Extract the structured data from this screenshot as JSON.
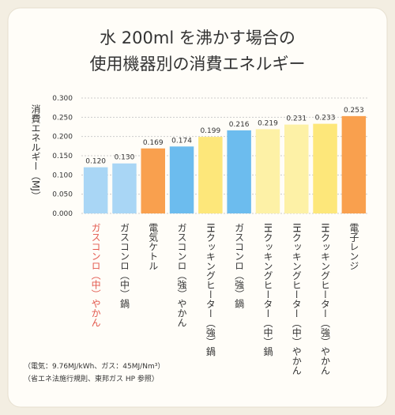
{
  "chart_data": {
    "type": "bar",
    "title": [
      "水 200ml を沸かす場合の",
      "使用機器別の消費エネルギー"
    ],
    "y_label": "消費エネルギー（MJ）",
    "categories": [
      "ガスコンロ（中）やかん",
      "ガスコンロ（中）鍋",
      "電気ケトル",
      "ガスコンロ（強）やかん",
      "IHクッキングヒーター（強）鍋",
      "ガスコンロ（強）鍋",
      "IHクッキングヒーター（中）鍋",
      "IHクッキングヒーター（中）やかん",
      "IHクッキングヒーター（強）やかん",
      "電子レンジ"
    ],
    "values": [
      0.12,
      0.13,
      0.169,
      0.174,
      0.199,
      0.216,
      0.219,
      0.231,
      0.233,
      0.253
    ],
    "value_labels": [
      "0.120",
      "0.130",
      "0.169",
      "0.174",
      "0.199",
      "0.216",
      "0.219",
      "0.231",
      "0.233",
      "0.253"
    ],
    "colors": [
      "#a9d6f5",
      "#a9d6f5",
      "#f9a04e",
      "#6cbcee",
      "#fde77a",
      "#6cbcee",
      "#fdf1a6",
      "#fdf1a6",
      "#fde77a",
      "#f9a04e"
    ],
    "highlight_color": "#e2574c",
    "ylim": [
      0,
      0.3
    ],
    "yticks": [
      {
        "value": 0,
        "label": "0.000"
      },
      {
        "value": 0.05,
        "label": "0.050"
      },
      {
        "value": 0.1,
        "label": "0.100"
      },
      {
        "value": 0.15,
        "label": "0.150"
      },
      {
        "value": 0.2,
        "label": "0.200"
      },
      {
        "value": 0.25,
        "label": "0.250"
      },
      {
        "value": 0.3,
        "label": "0.300"
      }
    ],
    "grid": true,
    "notes": [
      "（電気：9.76MJ/kWh、ガス：45MJ/Nm³）",
      "（省エネ法施行規則、東邦ガス HP 参照）"
    ]
  }
}
